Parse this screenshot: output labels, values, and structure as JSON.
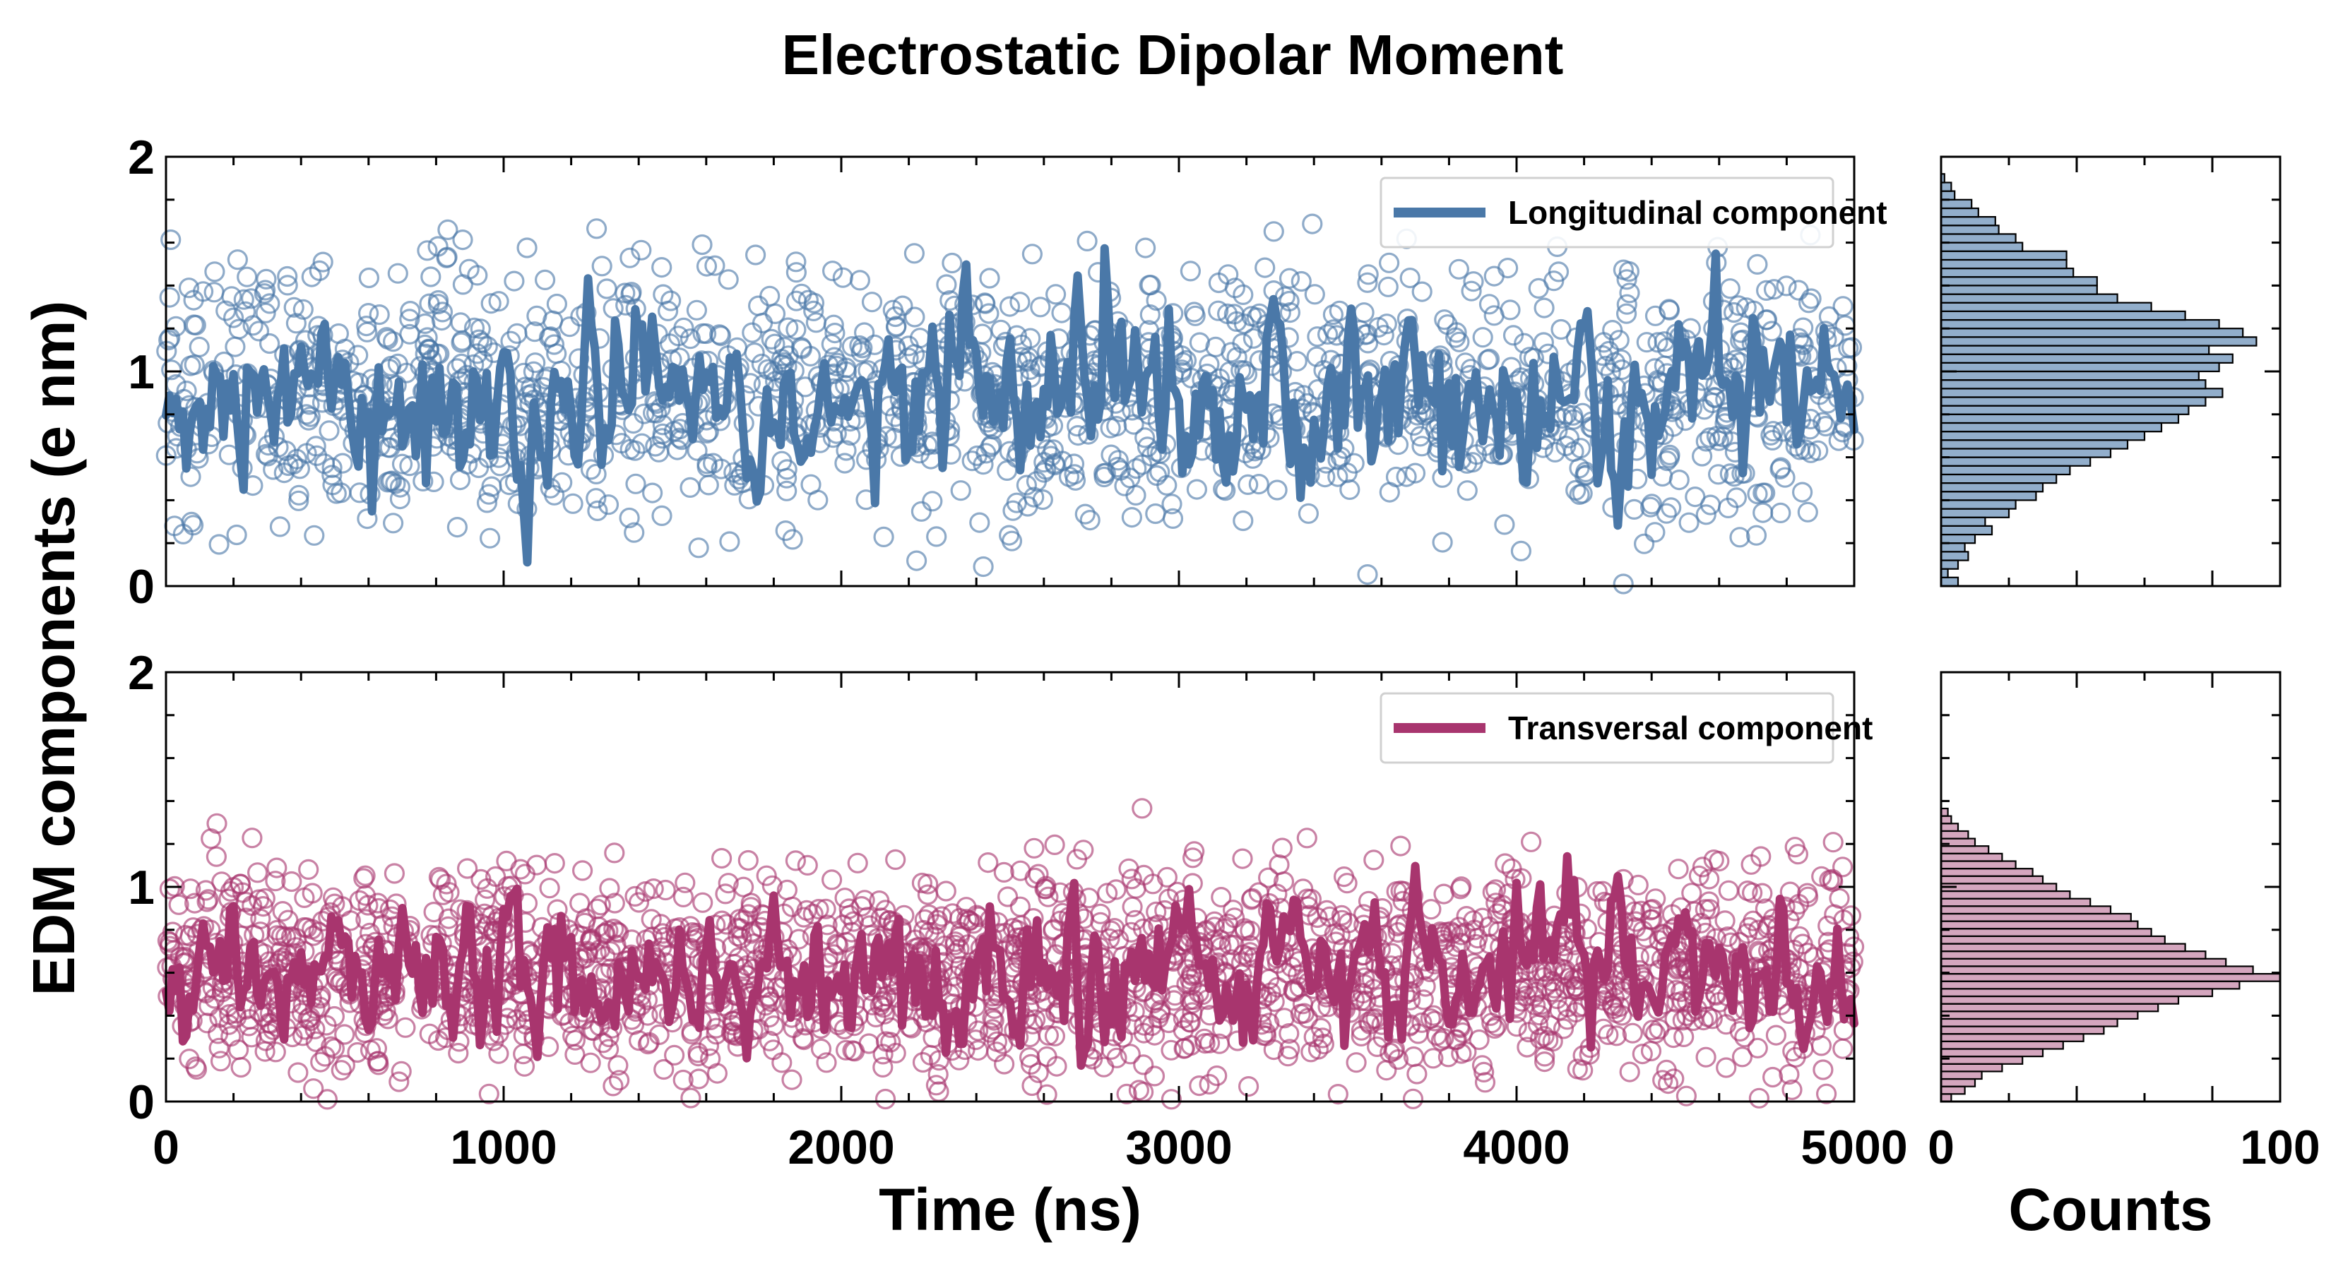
{
  "chart_data": [
    {
      "type": "scatter+line",
      "panel": "time-series-top",
      "title": "Electrostatic Dipolar Moment",
      "series_label": "Longitudinal component",
      "color": "#4a78a8",
      "xlabel": "",
      "ylabel": "",
      "xlim": [
        0,
        5000
      ],
      "ylim": [
        0,
        2
      ],
      "xticks": [
        0,
        1000,
        2000,
        3000,
        4000,
        5000
      ],
      "yticks": [
        0,
        1,
        2
      ],
      "ytick_labels": [
        "0",
        "1",
        "2"
      ],
      "mean": 0.88,
      "scatter_sd": 0.3,
      "smooth_amplitude": 0.18,
      "legend_position": "top-right"
    },
    {
      "type": "scatter+line",
      "panel": "time-series-bottom",
      "series_label": "Transversal component",
      "color": "#a8356e",
      "xlabel": "Time (ns)",
      "ylabel": "EDM components (e nm)",
      "xlim": [
        0,
        5000
      ],
      "ylim": [
        0,
        2
      ],
      "xticks": [
        0,
        1000,
        2000,
        3000,
        4000,
        5000
      ],
      "xtick_labels": [
        "0",
        "1000",
        "2000",
        "3000",
        "4000",
        "5000"
      ],
      "yticks": [
        0,
        1,
        2
      ],
      "ytick_labels": [
        "0",
        "1",
        "2"
      ],
      "mean": 0.6,
      "scatter_sd": 0.24,
      "smooth_amplitude": 0.14,
      "legend_position": "top-right"
    },
    {
      "type": "histogram",
      "orientation": "horizontal",
      "panel": "hist-top",
      "color": "#4a78a8",
      "ylim": [
        0,
        2
      ],
      "xlim": [
        0,
        100
      ],
      "bin_width": 0.04,
      "bin_start": 0.0,
      "counts": [
        5,
        2,
        5,
        8,
        7,
        10,
        15,
        13,
        20,
        22,
        28,
        30,
        34,
        38,
        44,
        50,
        55,
        60,
        65,
        70,
        73,
        78,
        83,
        78,
        76,
        82,
        86,
        79,
        93,
        89,
        82,
        72,
        62,
        52,
        46,
        46,
        39,
        37,
        37,
        24,
        22,
        17,
        16,
        11,
        9,
        4,
        3,
        1
      ]
    },
    {
      "type": "histogram",
      "orientation": "horizontal",
      "panel": "hist-bottom",
      "color": "#b86a92",
      "ylim": [
        0,
        2
      ],
      "xlim": [
        0,
        100
      ],
      "xlabel": "Counts",
      "xticks": [
        0,
        100
      ],
      "xtick_labels": [
        "0",
        "100"
      ],
      "bin_width": 0.035,
      "bin_start": 0.0,
      "counts": [
        3,
        7,
        10,
        12,
        18,
        24,
        30,
        36,
        42,
        48,
        52,
        58,
        64,
        70,
        80,
        88,
        100,
        92,
        84,
        78,
        72,
        66,
        62,
        58,
        56,
        50,
        44,
        38,
        34,
        30,
        27,
        22,
        18,
        14,
        10,
        8,
        5,
        3,
        2
      ]
    }
  ]
}
